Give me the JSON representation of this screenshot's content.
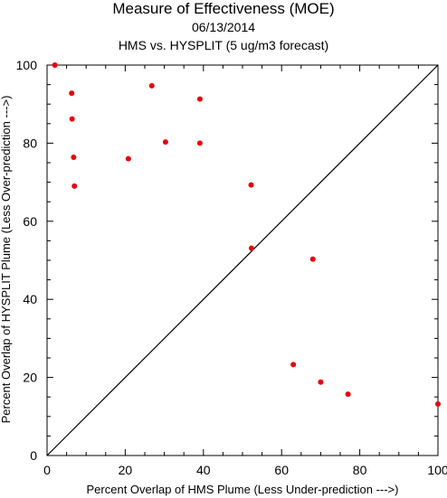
{
  "chart_data": {
    "type": "scatter",
    "title": "Measure of Effectiveness (MOE)",
    "subtitle": "06/13/2014",
    "subtitle2": "HMS vs. HYSPLIT  (5 ug/m3 forecast)",
    "xlabel": "Percent Overlap of HMS Plume (Less Under-prediction --->)",
    "ylabel": "Percent Overlap of HYSPLIT Plume (Less Over-prediction --->)",
    "xlim": [
      0,
      100
    ],
    "ylim": [
      0,
      100
    ],
    "xticks": [
      0,
      20,
      40,
      60,
      80,
      100
    ],
    "yticks": [
      0,
      20,
      40,
      60,
      80,
      100
    ],
    "grid": false,
    "reference_line": "y = x",
    "point_color": "#e8000b",
    "points": [
      {
        "x": 2,
        "y": 100
      },
      {
        "x": 6.3,
        "y": 92.8
      },
      {
        "x": 6.4,
        "y": 86.2
      },
      {
        "x": 6.8,
        "y": 76.4
      },
      {
        "x": 7,
        "y": 69
      },
      {
        "x": 20.8,
        "y": 76
      },
      {
        "x": 26.8,
        "y": 94.7
      },
      {
        "x": 30.3,
        "y": 80.3
      },
      {
        "x": 39.1,
        "y": 91.3
      },
      {
        "x": 39.1,
        "y": 80
      },
      {
        "x": 52.2,
        "y": 69.3
      },
      {
        "x": 52.3,
        "y": 53.1
      },
      {
        "x": 68,
        "y": 50.3
      },
      {
        "x": 63,
        "y": 23.3
      },
      {
        "x": 70,
        "y": 18.8
      },
      {
        "x": 77,
        "y": 15.7
      },
      {
        "x": 100,
        "y": 13.2
      }
    ]
  }
}
